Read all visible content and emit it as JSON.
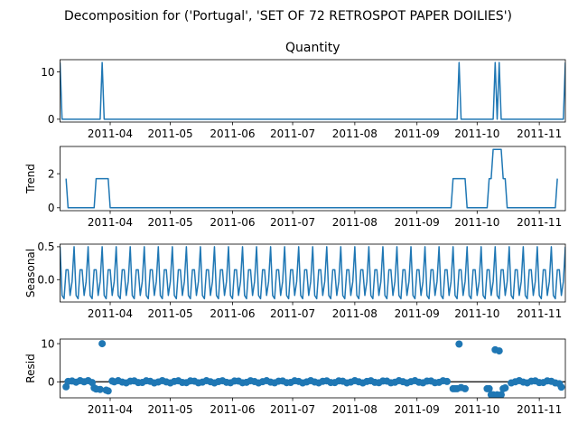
{
  "figure_title": "Decomposition for ('Portugal', 'SET OF 72 RETROSPOT PAPER  DOILIES')",
  "colors": {
    "line": "#1f77b4",
    "axis": "#000000",
    "background": "#ffffff"
  },
  "chart_data": [
    {
      "type": "line",
      "title": "Quantity",
      "ylabel": "",
      "xlim": [
        "2011-03-07",
        "2011-11-14"
      ],
      "ylim": [
        -0.6,
        12.6
      ],
      "yticks": [
        0,
        10
      ],
      "xticks": [
        "2011-04-01",
        "2011-05-01",
        "2011-06-01",
        "2011-07-01",
        "2011-08-01",
        "2011-09-01",
        "2011-10-01",
        "2011-11-01"
      ],
      "xticklabels": [
        "2011-04",
        "2011-05",
        "2011-06",
        "2011-07",
        "2011-08",
        "2011-09",
        "2011-10",
        "2011-11"
      ],
      "grid": false,
      "series": [
        {
          "points": [
            [
              "2011-03-07",
              12
            ],
            [
              "2011-03-08",
              0
            ],
            [
              "2011-03-27",
              0
            ],
            [
              "2011-03-28",
              12
            ],
            [
              "2011-03-29",
              0
            ],
            [
              "2011-09-21",
              0
            ],
            [
              "2011-09-22",
              12
            ],
            [
              "2011-09-23",
              0
            ],
            [
              "2011-10-09",
              0
            ],
            [
              "2011-10-10",
              12
            ],
            [
              "2011-10-11",
              0
            ],
            [
              "2011-10-12",
              12
            ],
            [
              "2011-10-13",
              0
            ],
            [
              "2011-11-13",
              0
            ],
            [
              "2011-11-14",
              12
            ]
          ]
        }
      ]
    },
    {
      "type": "line",
      "title": "",
      "ylabel": "Trend",
      "xlim": [
        "2011-03-07",
        "2011-11-14"
      ],
      "ylim": [
        -0.17,
        3.6
      ],
      "yticks": [
        0,
        2
      ],
      "xticks": [
        "2011-04-01",
        "2011-05-01",
        "2011-06-01",
        "2011-07-01",
        "2011-08-01",
        "2011-09-01",
        "2011-10-01",
        "2011-11-01"
      ],
      "xticklabels": [
        "2011-04",
        "2011-05",
        "2011-06",
        "2011-07",
        "2011-08",
        "2011-09",
        "2011-10",
        "2011-11"
      ],
      "grid": false,
      "series": [
        {
          "points": [
            [
              "2011-03-10",
              1.71
            ],
            [
              "2011-03-11",
              0
            ],
            [
              "2011-03-24",
              0
            ],
            [
              "2011-03-25",
              1.71
            ],
            [
              "2011-03-31",
              1.71
            ],
            [
              "2011-04-01",
              0
            ],
            [
              "2011-09-18",
              0
            ],
            [
              "2011-09-19",
              1.71
            ],
            [
              "2011-09-25",
              1.71
            ],
            [
              "2011-09-26",
              0
            ],
            [
              "2011-10-06",
              0
            ],
            [
              "2011-10-07",
              1.71
            ],
            [
              "2011-10-08",
              1.71
            ],
            [
              "2011-10-09",
              3.43
            ],
            [
              "2011-10-13",
              3.43
            ],
            [
              "2011-10-14",
              1.71
            ],
            [
              "2011-10-15",
              1.71
            ],
            [
              "2011-10-16",
              0
            ],
            [
              "2011-11-09",
              0
            ],
            [
              "2011-11-10",
              1.71
            ]
          ]
        }
      ]
    },
    {
      "type": "line",
      "title": "",
      "ylabel": "Seasonal",
      "xlim": [
        "2011-03-07",
        "2011-11-14"
      ],
      "ylim": [
        -0.34,
        0.54
      ],
      "yticks": [
        0.0,
        0.5
      ],
      "yticklabels": [
        "0.0",
        "0.5"
      ],
      "xticks": [
        "2011-04-01",
        "2011-05-01",
        "2011-06-01",
        "2011-07-01",
        "2011-08-01",
        "2011-09-01",
        "2011-10-01",
        "2011-11-01"
      ],
      "xticklabels": [
        "2011-04",
        "2011-05",
        "2011-06",
        "2011-07",
        "2011-08",
        "2011-09",
        "2011-10",
        "2011-11"
      ],
      "grid": false,
      "series": [
        {
          "period_days": 7,
          "start": "2011-03-07",
          "end": "2011-11-14",
          "weekly_pattern": [
            0.5,
            -0.24,
            -0.29,
            0.15,
            0.15,
            -0.24,
            -0.03
          ]
        }
      ]
    },
    {
      "type": "scatter",
      "title": "",
      "ylabel": "Resid",
      "xlim": [
        "2011-03-07",
        "2011-11-14"
      ],
      "ylim": [
        -4.2,
        11.2
      ],
      "yticks": [
        0,
        10
      ],
      "xticks": [
        "2011-04-01",
        "2011-05-01",
        "2011-06-01",
        "2011-07-01",
        "2011-08-01",
        "2011-09-01",
        "2011-10-01",
        "2011-11-01"
      ],
      "xticklabels": [
        "2011-04",
        "2011-05",
        "2011-06",
        "2011-07",
        "2011-08",
        "2011-09",
        "2011-10",
        "2011-11"
      ],
      "grid": false,
      "baseline": 0,
      "points": [
        [
          "2011-03-10",
          -1.3
        ],
        [
          "2011-03-11",
          0.1
        ],
        [
          "2011-03-13",
          0.2
        ],
        [
          "2011-03-15",
          -0.1
        ],
        [
          "2011-03-17",
          0.3
        ],
        [
          "2011-03-19",
          0.0
        ],
        [
          "2011-03-21",
          0.3
        ],
        [
          "2011-03-23",
          -0.2
        ],
        [
          "2011-03-24",
          -1.6
        ],
        [
          "2011-03-25",
          -1.9
        ],
        [
          "2011-03-27",
          -2.0
        ],
        [
          "2011-03-28",
          10.0
        ],
        [
          "2011-03-30",
          -2.2
        ],
        [
          "2011-03-31",
          -2.4
        ],
        [
          "2011-04-02",
          0.2
        ],
        [
          "2011-09-19",
          -1.8
        ],
        [
          "2011-09-20",
          -1.8
        ],
        [
          "2011-09-21",
          -1.8
        ],
        [
          "2011-09-22",
          9.9
        ],
        [
          "2011-09-23",
          -1.5
        ],
        [
          "2011-09-25",
          -1.8
        ],
        [
          "2011-10-06",
          -1.8
        ],
        [
          "2011-10-07",
          -1.8
        ],
        [
          "2011-10-08",
          -3.4
        ],
        [
          "2011-10-09",
          -3.4
        ],
        [
          "2011-10-10",
          8.4
        ],
        [
          "2011-10-11",
          -3.4
        ],
        [
          "2011-10-12",
          8.1
        ],
        [
          "2011-10-13",
          -3.4
        ],
        [
          "2011-10-14",
          -1.8
        ],
        [
          "2011-10-15",
          -1.6
        ],
        [
          "2011-11-11",
          -0.5
        ],
        [
          "2011-11-12",
          -1.4
        ]
      ],
      "background_points": {
        "start": "2011-04-03",
        "end": "2011-11-10",
        "step_days": 2,
        "values_range": [
          -0.3,
          0.3
        ],
        "excluded_spans": [
          [
            "2011-09-18",
            "2011-10-16"
          ]
        ]
      }
    }
  ]
}
